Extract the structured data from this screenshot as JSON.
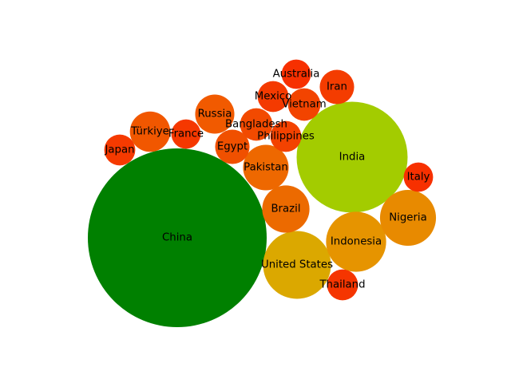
{
  "chart_data": {
    "type": "bubble",
    "title": "",
    "grid": false,
    "size_encoding": "bubble area proportional to value",
    "color_scale": [
      "#008000",
      "#ffff00",
      "#ff0000"
    ],
    "bubbles": [
      {
        "label": "China",
        "value": 1000,
        "color": "#008000"
      },
      {
        "label": "India",
        "value": 385,
        "color": "#a3cc00"
      },
      {
        "label": "United States",
        "value": 144,
        "color": "#dba800"
      },
      {
        "label": "Indonesia",
        "value": 113,
        "color": "#e69400"
      },
      {
        "label": "Nigeria",
        "value": 98,
        "color": "#e88a00"
      },
      {
        "label": "Brazil",
        "value": 70,
        "color": "#ec6a00"
      },
      {
        "label": "Pakistan",
        "value": 65,
        "color": "#ee6800"
      },
      {
        "label": "Russia",
        "value": 48,
        "color": "#f15a00"
      },
      {
        "label": "Türkiye",
        "value": 51,
        "color": "#f15700"
      },
      {
        "label": "Egypt",
        "value": 37,
        "color": "#f05000"
      },
      {
        "label": "Bangladesh",
        "value": 33,
        "color": "#f24a00"
      },
      {
        "label": "Vietnam",
        "value": 33,
        "color": "#f24400"
      },
      {
        "label": "Philippines",
        "value": 30,
        "color": "#f34200"
      },
      {
        "label": "Iran",
        "value": 37,
        "color": "#f43c00"
      },
      {
        "label": "Mexico",
        "value": 30,
        "color": "#f43a00"
      },
      {
        "label": "Thailand",
        "value": 30,
        "color": "#f53500"
      },
      {
        "label": "Japan",
        "value": 30,
        "color": "#f53a00"
      },
      {
        "label": "France",
        "value": 27,
        "color": "#f53800"
      },
      {
        "label": "Australia",
        "value": 27,
        "color": "#f73000"
      },
      {
        "label": "Italy",
        "value": 27,
        "color": "#f73000"
      }
    ]
  }
}
